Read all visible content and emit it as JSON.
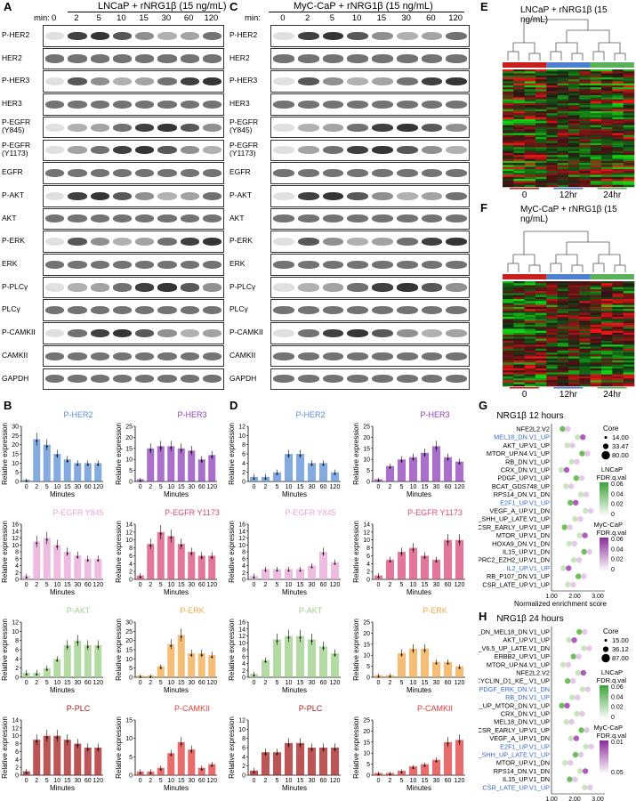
{
  "panels": {
    "A": {
      "letter": "A",
      "title": "LNCaP + rNRG1β (15 ng/mL)",
      "min_label": "min:",
      "times": [
        "0",
        "2",
        "5",
        "10",
        "15",
        "30",
        "60",
        "120"
      ],
      "rows": [
        "P-HER2",
        "HER2",
        "P-HER3",
        "HER3",
        "P-EGFR (Y845)",
        "P-EGFR (Y1173)",
        "EGFR",
        "P-AKT",
        "AKT",
        "P-ERK",
        "ERK",
        "P-PLCγ",
        "PLCγ",
        "P-CAMKII",
        "CAMKII",
        "GAPDH"
      ]
    },
    "C": {
      "letter": "C",
      "title": "MyC-CaP + rNRG1β (15 ng/mL)",
      "min_label": "min:",
      "times": [
        "0",
        "2",
        "5",
        "10",
        "15",
        "30",
        "60",
        "120"
      ],
      "rows": [
        "P-HER2",
        "HER2",
        "P-HER3",
        "HER3",
        "P-EGFR (Y845)",
        "P-EGFR (Y1173)",
        "EGFR",
        "P-AKT",
        "AKT",
        "P-ERK",
        "ERK",
        "P-PLCγ",
        "PLCγ",
        "P-CAMKII",
        "CAMKII",
        "GAPDH"
      ]
    },
    "E": {
      "letter": "E",
      "title": "LNCaP + rNRG1β (15 ng/mL)",
      "x_labels": [
        "0",
        "12hr",
        "24hr"
      ]
    },
    "F": {
      "letter": "F",
      "title": "MyC-CaP + rNRG1β (15 ng/mL)",
      "x_labels": [
        "0",
        "12hr",
        "24hr"
      ]
    },
    "B": {
      "letter": "B"
    },
    "D": {
      "letter": "D"
    },
    "G": {
      "letter": "G",
      "title": "NRG1β 12 hours",
      "xlabel": "Normalized enrichment score",
      "xticks": [
        "1.00",
        "2.00",
        "3.00"
      ],
      "gene_sets": [
        {
          "name": "NFE2L2.V2",
          "highlight": false
        },
        {
          "name": "MEL18_DN.V1_UP",
          "highlight": true
        },
        {
          "name": "AKT_UP.V1_UP",
          "highlight": false
        },
        {
          "name": "MTOR_UP.N4.V1_UP",
          "highlight": false
        },
        {
          "name": "RB_DN.V1_UP",
          "highlight": false
        },
        {
          "name": "CRX_DN.V1_UP",
          "highlight": false
        },
        {
          "name": "PDGF_UP.V1_UP",
          "highlight": false
        },
        {
          "name": "BCAT_GDS748_UP",
          "highlight": false
        },
        {
          "name": "RPS14_DN.V1_DN",
          "highlight": false
        },
        {
          "name": "E2F1_UP.V1_UP",
          "highlight": true
        },
        {
          "name": "VEGF_A_UP.V1_DN",
          "highlight": false
        },
        {
          "name": "GCNP_SHH_UP_LATE.V1_UP",
          "highlight": false
        },
        {
          "name": "CSR_EARLY_UP.V1_UP",
          "highlight": false
        },
        {
          "name": "MTOR_UP.V1_DN",
          "highlight": false
        },
        {
          "name": "HOXA9_DN.V1_DN",
          "highlight": false
        },
        {
          "name": "IL15_UP.V1_DN",
          "highlight": false
        },
        {
          "name": "PRC2_EZH2_UP.V1_DN",
          "highlight": false
        },
        {
          "name": "IL2_UP.V1_UP",
          "highlight": true
        },
        {
          "name": "RB_P107_DN.V1_UP",
          "highlight": false
        },
        {
          "name": "CSR_LATE_UP.V1_UP",
          "highlight": false
        }
      ],
      "legend": {
        "core_title": "Core",
        "core_values": [
          "14.00",
          "33.47",
          "80.00"
        ],
        "lncap_title": "LNCaP FDR.q.val",
        "lncap_ticks": [
          "0.06",
          "0.04",
          "0.02",
          "0"
        ],
        "myc_title": "MyC-CaP FDR.q.val",
        "myc_ticks": [
          "0.06",
          "0.04",
          "0.02",
          "0"
        ]
      }
    },
    "H": {
      "letter": "H",
      "title": "NRG1β 24 hours",
      "xlabel": "Normalized enrichment score",
      "xticks": [
        "1.00",
        "2.00",
        "3.00"
      ],
      "gene_sets": [
        {
          "name": "BMI1_DN_MEL18_DN.V1_UP",
          "highlight": false
        },
        {
          "name": "AKT_UP.V1_UP",
          "highlight": false
        },
        {
          "name": "ESC_V6.5_UP_LATE.V1_DN",
          "highlight": false
        },
        {
          "name": "ERBB2_UP.V1_UP",
          "highlight": false
        },
        {
          "name": "MTOR_UP.N4.V1_UP",
          "highlight": false
        },
        {
          "name": "NFE2L2.V2",
          "highlight": false
        },
        {
          "name": "CYCLIN_D1_KE_.V1_UP",
          "highlight": false
        },
        {
          "name": "PDGF_ERK_DN.V1_DN",
          "highlight": true
        },
        {
          "name": "RB_DN.V1_UP",
          "highlight": true
        },
        {
          "name": "AKT_UP_MTOR_DN.V1_UP",
          "highlight": false
        },
        {
          "name": "CRX_DN.V1_UP",
          "highlight": false
        },
        {
          "name": "MEL18_DN.V1_UP",
          "highlight": false
        },
        {
          "name": "CSR_EARLY_UP.V1_UP",
          "highlight": false
        },
        {
          "name": "VEGF_A_UP.V1_DN",
          "highlight": false
        },
        {
          "name": "E2F1_UP.V1_UP",
          "highlight": true
        },
        {
          "name": "GCNP_SHH_UP_LATE.V1_UP",
          "highlight": true
        },
        {
          "name": "MTOR_UP.V1_DN",
          "highlight": false
        },
        {
          "name": "RPS14_DN.V1_DN",
          "highlight": false
        },
        {
          "name": "IL15_UP.V1_DN",
          "highlight": false
        },
        {
          "name": "CSR_LATE_UP.V1_UP",
          "highlight": true
        }
      ],
      "legend": {
        "core_title": "Core",
        "core_values": [
          "15.00",
          "36.12",
          "87.00"
        ],
        "lncap_title": "LNCaP FDR.q.val",
        "lncap_ticks": [
          "0.06",
          "0.04",
          "0.02",
          "0"
        ],
        "myc_title": "MyC-CaP FDR.q.val",
        "myc_ticks": [
          "0.01",
          "0.05"
        ]
      }
    }
  },
  "colors": {
    "her2": "#5b8fd6",
    "her3": "#8c3fb8",
    "egfr845": "#e8a6d6",
    "egfr1173": "#d9497a",
    "akt": "#9ccf86",
    "erk": "#f0a84a",
    "plc": "#a61c1c",
    "camkii": "#e23b3b",
    "highlight_blue": "#3a66c4",
    "lncap_green": "#3aa33a",
    "myc_purple": "#8a2d9a",
    "hm_red": "#c81e1e",
    "hm_blue": "#4f7fcf",
    "hm_green": "#58b05a"
  },
  "chart_data": [
    {
      "type": "bar",
      "panel": "B",
      "title": "P-HER2",
      "categories": [
        "0",
        "2",
        "5",
        "10",
        "15",
        "30",
        "60",
        "120"
      ],
      "values": [
        1,
        23,
        20,
        15,
        12,
        10,
        10,
        10
      ],
      "ylabel": "Relative expression",
      "xlabel": "Minutes",
      "ylim": [
        0,
        30
      ],
      "yticks": [
        0,
        5,
        10,
        15,
        20,
        25,
        30
      ],
      "color": "her2"
    },
    {
      "type": "bar",
      "panel": "B",
      "title": "P-HER3",
      "categories": [
        "0",
        "2",
        "5",
        "10",
        "15",
        "30",
        "60",
        "120"
      ],
      "values": [
        1,
        15,
        16,
        16,
        15,
        14,
        10,
        12
      ],
      "ylabel": "Relative expression",
      "xlabel": "Minutes",
      "ylim": [
        0,
        25
      ],
      "yticks": [
        0,
        5,
        10,
        15,
        20,
        25
      ],
      "color": "her3"
    },
    {
      "type": "bar",
      "panel": "B",
      "title": "P-EGFR Y845",
      "categories": [
        "0",
        "2",
        "5",
        "10",
        "15",
        "30",
        "60",
        "120"
      ],
      "values": [
        1,
        11,
        12,
        10,
        8,
        7,
        6,
        6
      ],
      "ylabel": "Relative expression",
      "xlabel": "Minutes",
      "ylim": [
        0,
        16
      ],
      "yticks": [
        0,
        2,
        4,
        6,
        8,
        10,
        12,
        14,
        16
      ],
      "color": "egfr845"
    },
    {
      "type": "bar",
      "panel": "B",
      "title": "P-EGFR Y1173",
      "categories": [
        "0",
        "2",
        "5",
        "10",
        "15",
        "30",
        "60",
        "120"
      ],
      "values": [
        1,
        9,
        12,
        11,
        9,
        7,
        6,
        6
      ],
      "ylabel": "Relative expression",
      "xlabel": "Minutes",
      "ylim": [
        0,
        14
      ],
      "yticks": [
        0,
        2,
        4,
        6,
        8,
        10,
        12,
        14
      ],
      "color": "egfr1173"
    },
    {
      "type": "bar",
      "panel": "B",
      "title": "P-AKT",
      "categories": [
        "0",
        "2",
        "5",
        "10",
        "15",
        "30",
        "60",
        "120"
      ],
      "values": [
        1,
        1,
        2,
        4,
        7,
        8,
        7,
        7
      ],
      "ylabel": "Relative expression",
      "xlabel": "Minutes",
      "ylim": [
        0,
        12
      ],
      "yticks": [
        0,
        2,
        4,
        6,
        8,
        10,
        12
      ],
      "color": "akt"
    },
    {
      "type": "bar",
      "panel": "B",
      "title": "P-ERK",
      "categories": [
        "0",
        "2",
        "5",
        "10",
        "15",
        "30",
        "60",
        "120"
      ],
      "values": [
        1,
        1,
        6,
        18,
        23,
        13,
        13,
        12
      ],
      "ylabel": "Relative expression",
      "xlabel": "Minutes",
      "ylim": [
        0,
        30
      ],
      "yticks": [
        0,
        5,
        10,
        15,
        20,
        25,
        30
      ],
      "color": "erk"
    },
    {
      "type": "bar",
      "panel": "B",
      "title": "P-PLC",
      "categories": [
        "0",
        "2",
        "5",
        "10",
        "15",
        "30",
        "60",
        "120"
      ],
      "values": [
        1,
        9,
        10,
        10,
        9,
        8,
        7,
        7
      ],
      "ylabel": "Relative expression",
      "xlabel": "Minutes",
      "ylim": [
        0,
        14
      ],
      "yticks": [
        0,
        2,
        4,
        6,
        8,
        10,
        12,
        14
      ],
      "color": "plc"
    },
    {
      "type": "bar",
      "panel": "B",
      "title": "P-CAMKII",
      "categories": [
        "0",
        "2",
        "5",
        "10",
        "15",
        "30",
        "60",
        "120"
      ],
      "values": [
        1,
        1,
        2,
        6,
        9,
        7,
        2,
        3
      ],
      "ylabel": "Relative expression",
      "xlabel": "Minutes",
      "ylim": [
        0,
        15
      ],
      "yticks": [
        0,
        5,
        10,
        15
      ],
      "color": "camkii"
    },
    {
      "type": "bar",
      "panel": "D",
      "title": "P-HER2",
      "categories": [
        "0",
        "2",
        "5",
        "10",
        "15",
        "30",
        "60",
        "120"
      ],
      "values": [
        1,
        1,
        2,
        6,
        6,
        4,
        4,
        2
      ],
      "ylabel": "Relative expression",
      "xlabel": "Minutes",
      "ylim": [
        0,
        12
      ],
      "yticks": [
        0,
        2,
        4,
        6,
        8,
        10,
        12
      ],
      "color": "her2"
    },
    {
      "type": "bar",
      "panel": "D",
      "title": "P-HER3",
      "categories": [
        "0",
        "2",
        "5",
        "10",
        "15",
        "30",
        "60",
        "120"
      ],
      "values": [
        1,
        7,
        10,
        11,
        13,
        16,
        11,
        9
      ],
      "ylabel": "Relative expression",
      "xlabel": "Minutes",
      "ylim": [
        0,
        25
      ],
      "yticks": [
        0,
        5,
        10,
        15,
        20,
        25
      ],
      "color": "her3"
    },
    {
      "type": "bar",
      "panel": "D",
      "title": "P-EGFR Y845",
      "categories": [
        "0",
        "2",
        "5",
        "10",
        "15",
        "30",
        "60",
        "120"
      ],
      "values": [
        1,
        3,
        3,
        3,
        3,
        4,
        8,
        5
      ],
      "ylabel": "Relative expression",
      "xlabel": "Minutes",
      "ylim": [
        0,
        16
      ],
      "yticks": [
        0,
        2,
        4,
        6,
        8,
        10,
        12,
        14,
        16
      ],
      "color": "egfr845"
    },
    {
      "type": "bar",
      "panel": "D",
      "title": "P-EGFR Y1173",
      "categories": [
        "0",
        "2",
        "5",
        "10",
        "15",
        "30",
        "60",
        "120"
      ],
      "values": [
        1,
        5,
        7,
        8,
        6,
        5,
        10,
        10
      ],
      "ylabel": "Relative expression",
      "xlabel": "Minutes",
      "ylim": [
        0,
        14
      ],
      "yticks": [
        0,
        2,
        4,
        6,
        8,
        10,
        12,
        14
      ],
      "color": "egfr1173"
    },
    {
      "type": "bar",
      "panel": "D",
      "title": "P-AKT",
      "categories": [
        "0",
        "2",
        "5",
        "10",
        "15",
        "30",
        "60",
        "120"
      ],
      "values": [
        1,
        5,
        11,
        12,
        12,
        11,
        9,
        7
      ],
      "ylabel": "Relative expression",
      "xlabel": "Minutes",
      "ylim": [
        0,
        16
      ],
      "yticks": [
        0,
        2,
        4,
        6,
        8,
        10,
        12,
        14,
        16
      ],
      "color": "akt"
    },
    {
      "type": "bar",
      "panel": "D",
      "title": "P-ERK",
      "categories": [
        "0",
        "2",
        "5",
        "10",
        "15",
        "30",
        "60",
        "120"
      ],
      "values": [
        1,
        1,
        11,
        13,
        13,
        7,
        7,
        5
      ],
      "ylabel": "Relative expression",
      "xlabel": "Minutes",
      "ylim": [
        0,
        25
      ],
      "yticks": [
        0,
        5,
        10,
        15,
        20,
        25
      ],
      "color": "erk"
    },
    {
      "type": "bar",
      "panel": "D",
      "title": "P-PLC",
      "categories": [
        "0",
        "2",
        "5",
        "10",
        "15",
        "30",
        "60",
        "120"
      ],
      "values": [
        1,
        5,
        5,
        7,
        7,
        6,
        6,
        6
      ],
      "ylabel": "Relative expression",
      "xlabel": "Minutes",
      "ylim": [
        0,
        12
      ],
      "yticks": [
        0,
        2,
        4,
        6,
        8,
        10,
        12
      ],
      "color": "plc"
    },
    {
      "type": "bar",
      "panel": "D",
      "title": "P-CAMKII",
      "categories": [
        "0",
        "2",
        "5",
        "10",
        "15",
        "30",
        "60",
        "120"
      ],
      "values": [
        1,
        1,
        2,
        4,
        5,
        7,
        15,
        16
      ],
      "ylabel": "Relative expression",
      "xlabel": "Minutes",
      "ylim": [
        0,
        25
      ],
      "yticks": [
        0,
        5,
        10,
        15,
        20,
        25
      ],
      "color": "camkii"
    }
  ]
}
